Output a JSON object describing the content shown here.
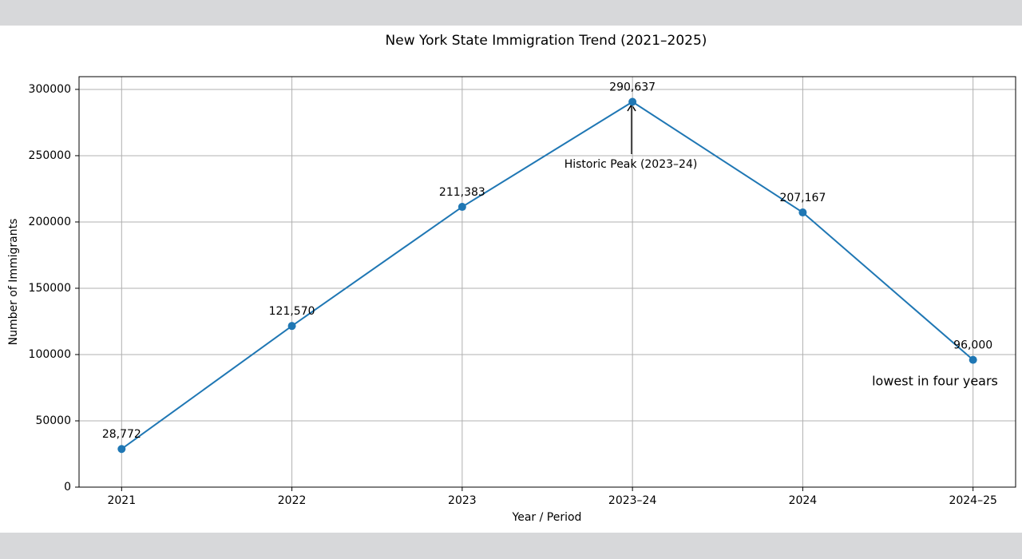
{
  "chart_data": {
    "type": "line",
    "title": "New York State Immigration Trend (2021–2025)",
    "x_label": "Year / Period",
    "y_label": "Number of Immigrants",
    "categories": [
      "2021",
      "2022",
      "2023",
      "2023–24",
      "2024",
      "2024–25"
    ],
    "series": [
      {
        "name": "Immigrants",
        "color": "#1f77b4",
        "values": [
          28772,
          121570,
          211383,
          290637,
          207167,
          96000
        ],
        "value_labels": [
          "28,772",
          "121,570",
          "211,383",
          "290,637",
          "207,167",
          "96,000"
        ]
      }
    ],
    "ylim": [
      0,
      309600
    ],
    "yticks": [
      0,
      50000,
      100000,
      150000,
      200000,
      250000,
      300000
    ],
    "grid": true,
    "annotations": [
      "Historic Peak (2023–24)",
      "lowest in four years"
    ]
  }
}
